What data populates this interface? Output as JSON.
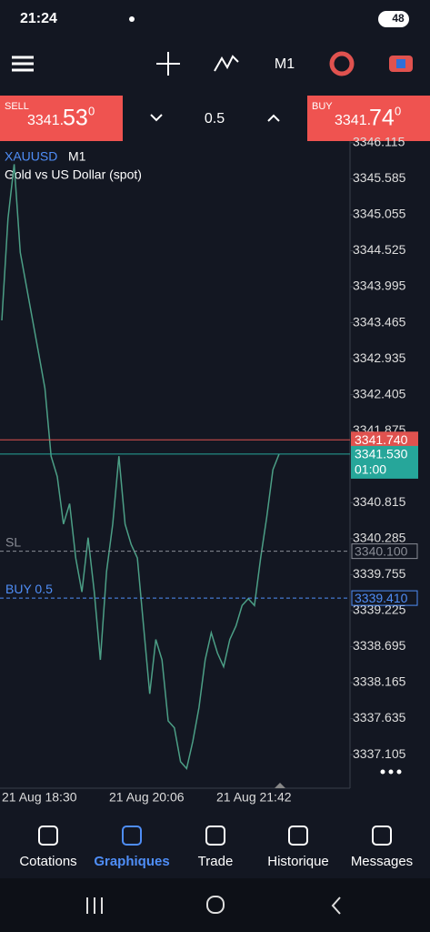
{
  "status": {
    "time": "21:24",
    "battery": "48"
  },
  "toolbar": {
    "timeframe": "M1"
  },
  "quote": {
    "sell_label": "SELL",
    "sell_main": "3341.",
    "sell_big": "53",
    "sell_sup": "0",
    "qty": "0.5",
    "buy_label": "BUY",
    "buy_main": "3341.",
    "buy_big": "74",
    "buy_sup": "0"
  },
  "chart": {
    "symbol": "XAUUSD",
    "timeframe": "M1",
    "description": "Gold vs US Dollar (spot)",
    "ylim": [
      3336.61,
      3346.14
    ],
    "yticks": [
      3346.115,
      3345.585,
      3345.055,
      3344.525,
      3343.995,
      3343.465,
      3342.935,
      3342.405,
      3341.875,
      3340.815,
      3340.285,
      3339.755,
      3339.225,
      3338.695,
      3338.165,
      3337.635,
      3337.105
    ],
    "xticks": [
      "21 Aug 18:30",
      "21 Aug 20:06",
      "21 Aug 21:42"
    ],
    "ask": {
      "value": 3341.74,
      "label": "3341.740",
      "color": "#e0524f"
    },
    "bid": {
      "value": 3341.53,
      "label": "3341.530",
      "color": "#26a69a",
      "timer": "01:00"
    },
    "sl": {
      "name": "SL",
      "value": 3340.1,
      "label": "3340.100"
    },
    "order": {
      "name": "BUY 0.5",
      "value": 3339.41,
      "label": "3339.410"
    },
    "price_series": {
      "color": "#4c9f86",
      "values": [
        3343.5,
        3345.0,
        3345.8,
        3344.5,
        3344.0,
        3343.5,
        3343.0,
        3342.5,
        3341.5,
        3341.2,
        3340.5,
        3340.8,
        3340.0,
        3339.5,
        3340.3,
        3339.5,
        3338.5,
        3339.8,
        3340.5,
        3341.5,
        3340.5,
        3340.2,
        3340.0,
        3339.0,
        3338.0,
        3338.8,
        3338.5,
        3337.6,
        3337.5,
        3337.0,
        3336.9,
        3337.3,
        3337.8,
        3338.5,
        3338.9,
        3338.6,
        3338.4,
        3338.8,
        3339.0,
        3339.3,
        3339.4,
        3339.3,
        3340.0,
        3340.6,
        3341.3,
        3341.53
      ]
    }
  },
  "nav": [
    "Cotations",
    "Graphiques",
    "Trade",
    "Historique",
    "Messages"
  ]
}
